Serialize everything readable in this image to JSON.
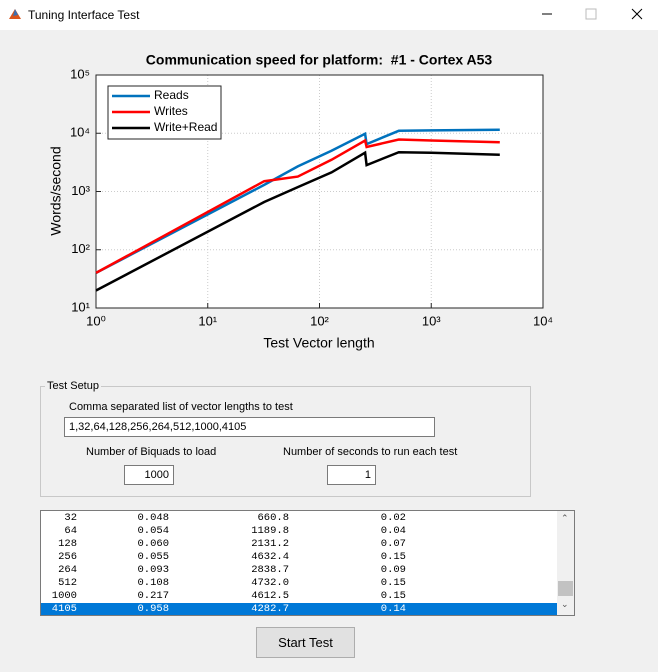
{
  "window": {
    "title": "Tuning Interface Test"
  },
  "chart_data": {
    "type": "line",
    "title": "Communication speed for platform:  #1 - Cortex A53",
    "x_label": "Test Vector length",
    "y_label": "Words/second",
    "x": [
      1,
      32,
      64,
      128,
      256,
      264,
      512,
      1000,
      4105
    ],
    "series": [
      {
        "name": "Reads",
        "color": "#0072bd",
        "values": [
          40,
          1300,
          2700,
          5000,
          9800,
          6500,
          11000,
          11200,
          11500
        ]
      },
      {
        "name": "Writes",
        "color": "#ff0000",
        "values": [
          40,
          1500,
          1800,
          3500,
          7500,
          5800,
          7800,
          7500,
          7000
        ]
      },
      {
        "name": "Write+Read",
        "color": "#000000",
        "values": [
          20,
          660.8,
          1189.8,
          2131.2,
          4632.4,
          2838.7,
          4732.0,
          4612.5,
          4282.7
        ]
      }
    ],
    "xscale": "log",
    "yscale": "log",
    "xlim": [
      1,
      10000
    ],
    "ylim": [
      10,
      100000
    ],
    "xticks": [
      {
        "value": 1,
        "label": "10⁰"
      },
      {
        "value": 10,
        "label": "10¹"
      },
      {
        "value": 100,
        "label": "10²"
      },
      {
        "value": 1000,
        "label": "10³"
      },
      {
        "value": 10000,
        "label": "10⁴"
      }
    ],
    "yticks": [
      {
        "value": 10,
        "label": "10¹"
      },
      {
        "value": 100,
        "label": "10²"
      },
      {
        "value": 1000,
        "label": "10³"
      },
      {
        "value": 10000,
        "label": "10⁴"
      },
      {
        "value": 100000,
        "label": "10⁵"
      }
    ],
    "grid": true,
    "legend": "northwest"
  },
  "test_setup": {
    "title": "Test Setup",
    "vector_lengths_label": "Comma separated list of vector lengths to test",
    "vector_lengths": "1,32,64,128,256,264,512,1000,4105",
    "biquads_label": "Number of Biquads to load",
    "biquads": "1000",
    "seconds_label": "Number of seconds to run each test",
    "seconds": "1"
  },
  "results": {
    "rows": [
      [
        "32",
        "0.048",
        "660.8",
        "0.02"
      ],
      [
        "64",
        "0.054",
        "1189.8",
        "0.04"
      ],
      [
        "128",
        "0.060",
        "2131.2",
        "0.07"
      ],
      [
        "256",
        "0.055",
        "4632.4",
        "0.15"
      ],
      [
        "264",
        "0.093",
        "2838.7",
        "0.09"
      ],
      [
        "512",
        "0.108",
        "4732.0",
        "0.15"
      ],
      [
        "1000",
        "0.217",
        "4612.5",
        "0.15"
      ],
      [
        "4105",
        "0.958",
        "4282.7",
        "0.14"
      ]
    ],
    "selected_row": 7
  },
  "button": {
    "label": "Start Test"
  }
}
